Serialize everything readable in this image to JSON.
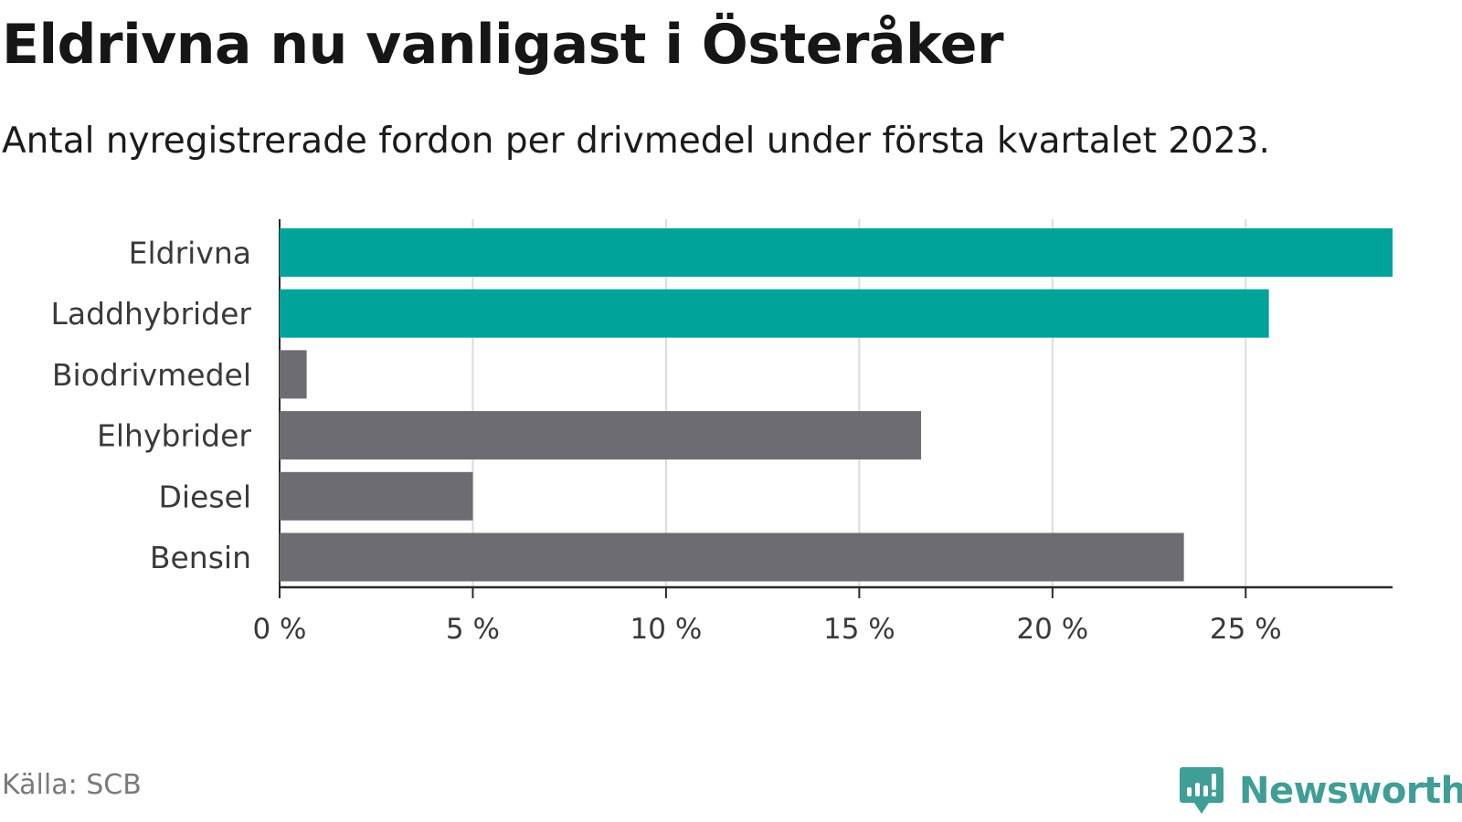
{
  "header": {
    "title": "Eldrivna nu vanligast i Österåker",
    "subtitle": "Antal nyregistrerade fordon per drivmedel under första kvartalet 2023."
  },
  "chart_data": {
    "type": "bar",
    "orientation": "horizontal",
    "title": "Eldrivna nu vanligast i Österåker",
    "subtitle": "Antal nyregistrerade fordon per drivmedel under första kvartalet 2023.",
    "xlabel": "",
    "ylabel": "",
    "unit": "%",
    "categories": [
      "Eldrivna",
      "Laddhybrider",
      "Biodrivmedel",
      "Elhybrider",
      "Diesel",
      "Bensin"
    ],
    "values": [
      28.8,
      25.6,
      0.7,
      16.6,
      5.0,
      23.4
    ],
    "highlight": [
      true,
      true,
      false,
      false,
      false,
      false
    ],
    "xlim": [
      0,
      28.8
    ],
    "xticks": [
      0,
      5,
      10,
      15,
      20,
      25
    ],
    "xtick_labels": [
      "0 %",
      "5 %",
      "10 %",
      "15 %",
      "20 %",
      "25 %"
    ],
    "grid": true,
    "colors": {
      "highlight": "#00a39a",
      "default": "#6d6c72",
      "grid": "#dcdcdc",
      "axis": "#2a2a2a"
    }
  },
  "footer": {
    "source": "Källa: SCB",
    "brand": "Newsworthy",
    "brand_color": "#3f9e96"
  }
}
